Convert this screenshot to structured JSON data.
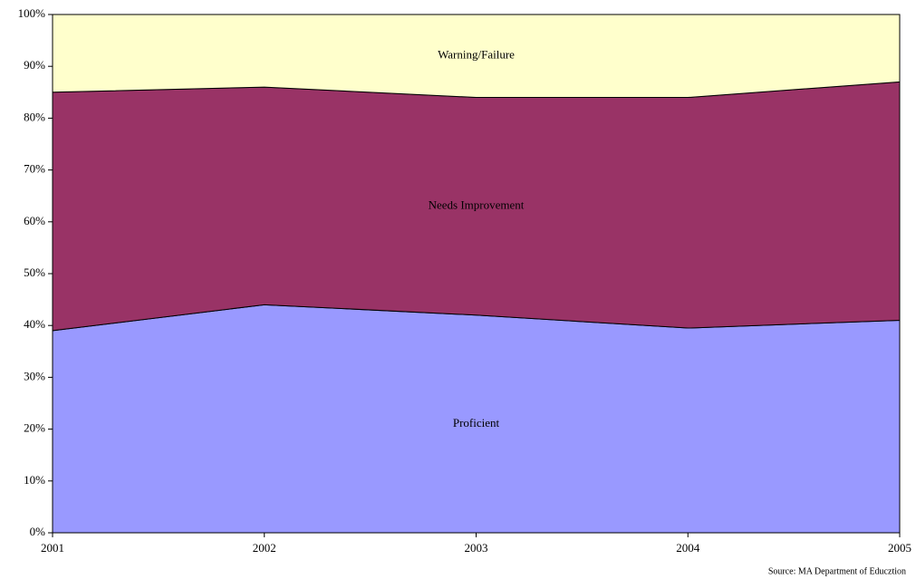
{
  "chart_data": {
    "type": "stacked_area",
    "categories": [
      "2001",
      "2002",
      "2003",
      "2004",
      "2005"
    ],
    "series": [
      {
        "name": "Proficient",
        "color": "#9999ff",
        "values": [
          39,
          44,
          42,
          39.5,
          41
        ]
      },
      {
        "name": "Needs Improvement",
        "color": "#993366",
        "values": [
          46,
          42,
          42,
          44.5,
          46
        ]
      },
      {
        "name": "Warning/Failure",
        "color": "#ffffcc",
        "values": [
          15,
          14,
          16,
          16,
          13
        ]
      }
    ],
    "ylim": [
      0,
      100
    ],
    "yticks": [
      {
        "value": 0,
        "label": "0%"
      },
      {
        "value": 10,
        "label": "10%"
      },
      {
        "value": 20,
        "label": "20%"
      },
      {
        "value": 30,
        "label": "30%"
      },
      {
        "value": 40,
        "label": "40%"
      },
      {
        "value": 50,
        "label": "50%"
      },
      {
        "value": 60,
        "label": "60%"
      },
      {
        "value": 70,
        "label": "70%"
      },
      {
        "value": 80,
        "label": "80%"
      },
      {
        "value": 90,
        "label": "90%"
      },
      {
        "value": 100,
        "label": "100%"
      }
    ],
    "source": "Source: MA Department of Educztion"
  }
}
